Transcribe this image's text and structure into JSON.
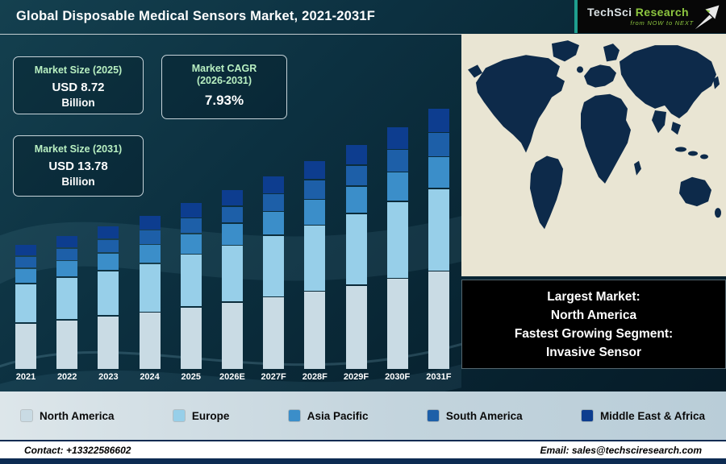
{
  "header": {
    "title": "Global Disposable Medical Sensors Market, 2021-2031F",
    "logo": {
      "brand_part1": "TechSci",
      "brand_part2": "Research",
      "tagline": "from NOW to NEXT"
    }
  },
  "stat_boxes": [
    {
      "label": "Market Size (2025)",
      "value": "USD 8.72",
      "unit": "Billion"
    },
    {
      "label_line1": "Market CAGR",
      "label_line2": "(2026-2031)",
      "value": "7.93%"
    },
    {
      "label": "Market Size (2031)",
      "value": "USD 13.78",
      "unit": "Billion"
    }
  ],
  "chart_data": {
    "type": "bar",
    "stacked": true,
    "title": "Global Disposable Medical Sensors Market, 2021-2031F",
    "categories": [
      "2021",
      "2022",
      "2023",
      "2024",
      "2025",
      "2026E",
      "2027F",
      "2028F",
      "2029F",
      "2030F",
      "2031F"
    ],
    "series": [
      {
        "name": "North America",
        "color": "#c9dbe4",
        "values": [
          2.45,
          2.63,
          2.83,
          3.04,
          3.31,
          3.57,
          3.86,
          4.16,
          4.5,
          4.85,
          5.24
        ]
      },
      {
        "name": "Europe",
        "color": "#97cfe9",
        "values": [
          2.06,
          2.22,
          2.38,
          2.56,
          2.79,
          3.01,
          3.25,
          3.51,
          3.79,
          4.09,
          4.41
        ]
      },
      {
        "name": "Asia Pacific",
        "color": "#3b8ec9",
        "values": [
          0.77,
          0.83,
          0.89,
          0.96,
          1.05,
          1.13,
          1.22,
          1.32,
          1.42,
          1.53,
          1.65
        ]
      },
      {
        "name": "South America",
        "color": "#1d5fa8",
        "values": [
          0.58,
          0.62,
          0.67,
          0.72,
          0.78,
          0.85,
          0.91,
          0.99,
          1.06,
          1.15,
          1.24
        ]
      },
      {
        "name": "Middle East & Africa",
        "color": "#0d3d8f",
        "values": [
          0.58,
          0.62,
          0.67,
          0.72,
          0.78,
          0.85,
          0.91,
          0.99,
          1.06,
          1.15,
          1.24
        ]
      }
    ],
    "ylim": [
      0,
      14
    ],
    "axes_visible": false,
    "gridlines": false,
    "legend_position": "bottom"
  },
  "highlight_box": {
    "lines": [
      "Largest Market:",
      "North America",
      "Fastest Growing Segment:",
      "Invasive Sensor"
    ]
  },
  "footer": {
    "contact": "Contact: +13322586602",
    "email": "Email: sales@techsciresearch.com"
  }
}
